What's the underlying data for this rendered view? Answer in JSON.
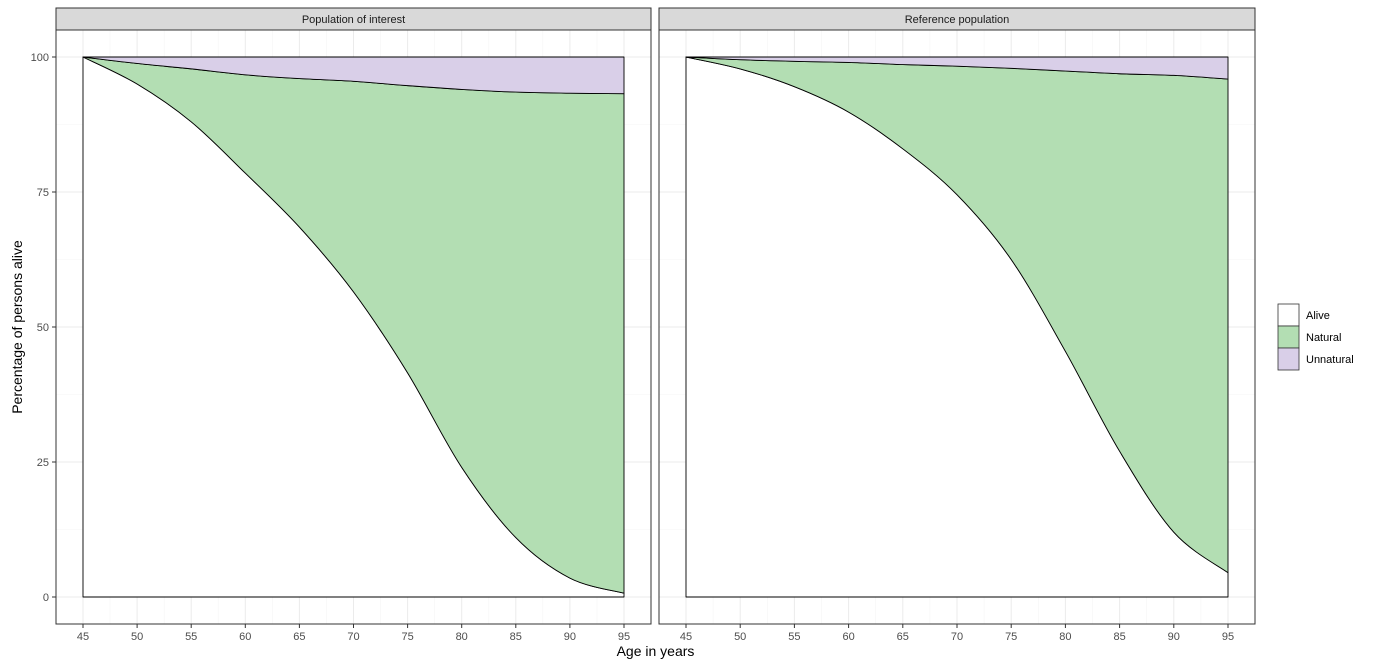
{
  "chart_data": {
    "type": "area",
    "xlabel": "Age in years",
    "ylabel": "Percentage of persons alive",
    "xlim": [
      45,
      95
    ],
    "ylim": [
      0,
      100
    ],
    "x_ticks": [
      45,
      50,
      55,
      60,
      65,
      70,
      75,
      80,
      85,
      90,
      95
    ],
    "y_ticks": [
      0,
      25,
      50,
      75,
      100
    ],
    "grid": true,
    "stacked": true,
    "legend": {
      "position": "right",
      "entries": [
        {
          "label": "Alive",
          "color": "#ffffff"
        },
        {
          "label": "Natural",
          "color": "#b3deb3"
        },
        {
          "label": "Unnatural",
          "color": "#d9cfe8"
        }
      ]
    },
    "x": [
      45,
      50,
      55,
      60,
      65,
      70,
      75,
      80,
      85,
      90,
      95
    ],
    "panels": [
      {
        "title": "Population of interest",
        "series": [
          {
            "name": "Alive",
            "values": [
              100,
              95,
              88,
              78.5,
              68.5,
              56.5,
              41.5,
              24,
              11,
              3.5,
              0.7
            ]
          },
          {
            "name": "Natural",
            "values": [
              0,
              3.8,
              9.8,
              18.2,
              27.5,
              39,
              53.2,
              70,
              82.5,
              89.8,
              92.5
            ]
          },
          {
            "name": "Unnatural",
            "values": [
              0,
              1.2,
              2.2,
              3.3,
              4.0,
              4.5,
              5.3,
              6.0,
              6.5,
              6.7,
              6.8
            ]
          }
        ]
      },
      {
        "title": "Reference population",
        "series": [
          {
            "name": "Alive",
            "values": [
              100,
              97.8,
              94.5,
              89.8,
              83,
              74.5,
              62.5,
              45.5,
              27,
              12,
              4.5
            ]
          },
          {
            "name": "Natural",
            "values": [
              0,
              1.7,
              4.7,
              9.2,
              15.6,
              23.8,
              35.4,
              51.9,
              69.9,
              84.6,
              91.4
            ]
          },
          {
            "name": "Unnatural",
            "values": [
              0,
              0.5,
              0.8,
              1.0,
              1.4,
              1.7,
              2.1,
              2.6,
              3.1,
              3.4,
              4.1
            ]
          }
        ]
      }
    ]
  }
}
